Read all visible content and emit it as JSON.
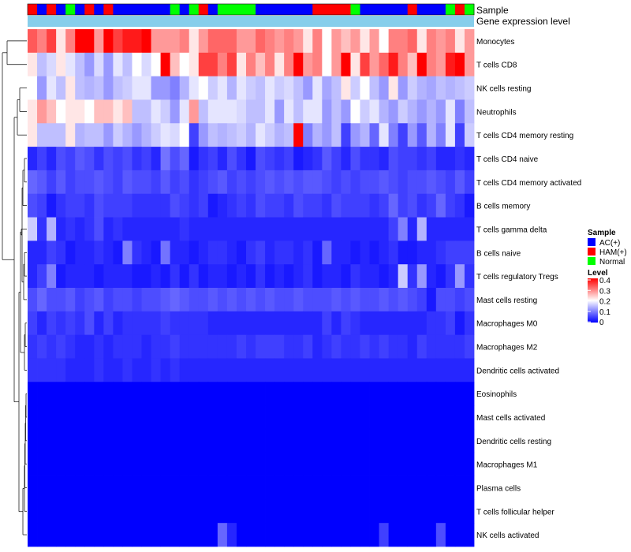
{
  "chart_data": {
    "type": "heatmap",
    "title": "",
    "annotation_rows": [
      "Sample",
      "Gene expression level"
    ],
    "sample_groups": [
      "HAM(+)",
      "AC(+)",
      "HAM(+)",
      "AC(+)",
      "Normal",
      "AC(+)",
      "HAM(+)",
      "AC(+)",
      "HAM(+)",
      "AC(+)",
      "AC(+)",
      "AC(+)",
      "AC(+)",
      "AC(+)",
      "AC(+)",
      "Normal",
      "AC(+)",
      "Normal",
      "HAM(+)",
      "AC(+)",
      "Normal",
      "Normal",
      "Normal",
      "Normal",
      "AC(+)",
      "AC(+)",
      "AC(+)",
      "AC(+)",
      "AC(+)",
      "AC(+)",
      "HAM(+)",
      "HAM(+)",
      "HAM(+)",
      "HAM(+)",
      "Normal",
      "AC(+)",
      "AC(+)",
      "AC(+)",
      "AC(+)",
      "AC(+)",
      "HAM(+)",
      "AC(+)",
      "AC(+)",
      "AC(+)",
      "Normal",
      "HAM(+)",
      "Normal"
    ],
    "rows": [
      {
        "name": "Monocytes",
        "values": [
          0.33,
          0.3,
          0.35,
          0.22,
          0.3,
          0.4,
          0.4,
          0.28,
          0.4,
          0.35,
          0.38,
          0.38,
          0.4,
          0.28,
          0.28,
          0.28,
          0.3,
          0.22,
          0.28,
          0.32,
          0.32,
          0.32,
          0.28,
          0.28,
          0.32,
          0.3,
          0.28,
          0.3,
          0.28,
          0.22,
          0.3,
          0.2,
          0.28,
          0.25,
          0.28,
          0.22,
          0.28,
          0.2,
          0.3,
          0.3,
          0.32,
          0.22,
          0.3,
          0.28,
          0.3,
          0.22,
          0.28
        ]
      },
      {
        "name": "T cells CD8",
        "values": [
          0.22,
          0.15,
          0.17,
          0.22,
          0.18,
          0.15,
          0.12,
          0.17,
          0.12,
          0.18,
          0.15,
          0.2,
          0.17,
          0.2,
          0.4,
          0.25,
          0.2,
          0.22,
          0.35,
          0.35,
          0.3,
          0.35,
          0.22,
          0.3,
          0.25,
          0.3,
          0.22,
          0.3,
          0.4,
          0.28,
          0.3,
          0.2,
          0.28,
          0.42,
          0.22,
          0.35,
          0.28,
          0.32,
          0.38,
          0.3,
          0.25,
          0.4,
          0.3,
          0.28,
          0.38,
          0.4,
          0.28
        ]
      },
      {
        "name": "NK cells resting",
        "values": [
          0.2,
          0.12,
          0.18,
          0.15,
          0.22,
          0.15,
          0.14,
          0.15,
          0.12,
          0.15,
          0.16,
          0.18,
          0.18,
          0.12,
          0.12,
          0.1,
          0.14,
          0.18,
          0.2,
          0.16,
          0.18,
          0.14,
          0.18,
          0.16,
          0.15,
          0.18,
          0.16,
          0.17,
          0.15,
          0.12,
          0.18,
          0.13,
          0.15,
          0.22,
          0.16,
          0.2,
          0.15,
          0.12,
          0.22,
          0.12,
          0.16,
          0.14,
          0.13,
          0.15,
          0.14,
          0.15,
          0.16
        ]
      },
      {
        "name": "Neutrophils",
        "values": [
          0.22,
          0.28,
          0.25,
          0.2,
          0.22,
          0.22,
          0.2,
          0.25,
          0.25,
          0.22,
          0.25,
          0.15,
          0.15,
          0.18,
          0.16,
          0.12,
          0.18,
          0.28,
          0.15,
          0.18,
          0.18,
          0.18,
          0.17,
          0.15,
          0.15,
          0.18,
          0.12,
          0.18,
          0.15,
          0.18,
          0.18,
          0.12,
          0.15,
          0.12,
          0.2,
          0.16,
          0.18,
          0.14,
          0.12,
          0.16,
          0.14,
          0.12,
          0.14,
          0.12,
          0.18,
          0.1,
          0.15
        ]
      },
      {
        "name": "T cells CD4 memory resting",
        "values": [
          0.22,
          0.15,
          0.15,
          0.15,
          0.22,
          0.14,
          0.15,
          0.15,
          0.12,
          0.16,
          0.14,
          0.12,
          0.14,
          0.16,
          0.18,
          0.17,
          0.2,
          0.05,
          0.12,
          0.15,
          0.14,
          0.15,
          0.16,
          0.14,
          0.18,
          0.16,
          0.14,
          0.15,
          0.42,
          0.1,
          0.14,
          0.12,
          0.15,
          0.05,
          0.12,
          0.14,
          0.08,
          0.18,
          0.1,
          0.05,
          0.12,
          0.07,
          0.14,
          0.1,
          0.18,
          0.05,
          0.16
        ]
      },
      {
        "name": "T cells CD4 naive",
        "values": [
          0.03,
          0.05,
          0.03,
          0.06,
          0.05,
          0.07,
          0.06,
          0.04,
          0.06,
          0.05,
          0.06,
          0.04,
          0.05,
          0.03,
          0.09,
          0.06,
          0.08,
          0.02,
          0.04,
          0.05,
          0.03,
          0.06,
          0.04,
          0.02,
          0.06,
          0.05,
          0.04,
          0.05,
          0.02,
          0.03,
          0.04,
          0.07,
          0.05,
          0.03,
          0.06,
          0.04,
          0.04,
          0.03,
          0.06,
          0.05,
          0.05,
          0.04,
          0.05,
          0.03,
          0.03,
          0.04,
          0.03
        ]
      },
      {
        "name": "T cells CD4 memory activated",
        "values": [
          0.08,
          0.07,
          0.05,
          0.07,
          0.05,
          0.06,
          0.06,
          0.07,
          0.06,
          0.05,
          0.07,
          0.06,
          0.06,
          0.05,
          0.07,
          0.05,
          0.06,
          0.04,
          0.05,
          0.06,
          0.07,
          0.05,
          0.06,
          0.05,
          0.06,
          0.07,
          0.06,
          0.07,
          0.06,
          0.07,
          0.07,
          0.06,
          0.05,
          0.06,
          0.05,
          0.06,
          0.06,
          0.07,
          0.06,
          0.05,
          0.06,
          0.06,
          0.07,
          0.06,
          0.05,
          0.07,
          0.05
        ]
      },
      {
        "name": "B cells memory",
        "values": [
          0.06,
          0.05,
          0.02,
          0.04,
          0.05,
          0.05,
          0.04,
          0.06,
          0.05,
          0.05,
          0.05,
          0.04,
          0.04,
          0.04,
          0.04,
          0.06,
          0.05,
          0.04,
          0.05,
          0.02,
          0.03,
          0.04,
          0.05,
          0.04,
          0.06,
          0.05,
          0.05,
          0.04,
          0.06,
          0.05,
          0.05,
          0.04,
          0.06,
          0.05,
          0.05,
          0.05,
          0.04,
          0.05,
          0.08,
          0.05,
          0.06,
          0.04,
          0.05,
          0.08,
          0.05,
          0.04,
          0.02
        ]
      },
      {
        "name": "T cells gamma delta",
        "values": [
          0.16,
          0.04,
          0.14,
          0.03,
          0.04,
          0.03,
          0.04,
          0.06,
          0.03,
          0.04,
          0.03,
          0.03,
          0.03,
          0.03,
          0.03,
          0.03,
          0.04,
          0.03,
          0.03,
          0.03,
          0.03,
          0.03,
          0.03,
          0.03,
          0.03,
          0.03,
          0.03,
          0.03,
          0.03,
          0.03,
          0.03,
          0.03,
          0.03,
          0.03,
          0.03,
          0.03,
          0.03,
          0.03,
          0.05,
          0.1,
          0.03,
          0.14,
          0.03,
          0.03,
          0.03,
          0.03,
          0.03
        ]
      },
      {
        "name": "B cells naive",
        "values": [
          0.03,
          0.03,
          0.05,
          0.04,
          0.02,
          0.03,
          0.03,
          0.04,
          0.03,
          0.02,
          0.1,
          0.04,
          0.03,
          0.02,
          0.09,
          0.03,
          0.03,
          0.02,
          0.03,
          0.04,
          0.04,
          0.03,
          0.02,
          0.04,
          0.05,
          0.03,
          0.04,
          0.04,
          0.03,
          0.04,
          0.02,
          0.08,
          0.03,
          0.03,
          0.02,
          0.03,
          0.02,
          0.03,
          0.04,
          0.02,
          0.02,
          0.03,
          0.03,
          0.04,
          0.05,
          0.05,
          0.05
        ]
      },
      {
        "name": "T cells regulatory  Tregs",
        "values": [
          0.03,
          0.05,
          0.1,
          0.02,
          0.03,
          0.03,
          0.03,
          0.02,
          0.03,
          0.03,
          0.03,
          0.02,
          0.02,
          0.03,
          0.02,
          0.04,
          0.02,
          0.04,
          0.02,
          0.03,
          0.03,
          0.02,
          0.03,
          0.02,
          0.04,
          0.02,
          0.03,
          0.02,
          0.03,
          0.04,
          0.02,
          0.03,
          0.03,
          0.02,
          0.04,
          0.03,
          0.03,
          0.02,
          0.03,
          0.16,
          0.04,
          0.12,
          0.03,
          0.02,
          0.04,
          0.12,
          0.04
        ]
      },
      {
        "name": "Mast cells resting",
        "values": [
          0.06,
          0.08,
          0.06,
          0.06,
          0.07,
          0.05,
          0.06,
          0.07,
          0.05,
          0.06,
          0.06,
          0.05,
          0.06,
          0.06,
          0.07,
          0.08,
          0.07,
          0.06,
          0.06,
          0.07,
          0.06,
          0.07,
          0.06,
          0.07,
          0.06,
          0.07,
          0.06,
          0.06,
          0.07,
          0.06,
          0.06,
          0.06,
          0.07,
          0.06,
          0.07,
          0.06,
          0.06,
          0.07,
          0.06,
          0.07,
          0.06,
          0.05,
          0.02,
          0.06,
          0.06,
          0.05,
          0.06
        ]
      },
      {
        "name": "Macrophages M0",
        "values": [
          0.05,
          0.03,
          0.05,
          0.04,
          0.05,
          0.04,
          0.06,
          0.03,
          0.05,
          0.03,
          0.04,
          0.04,
          0.04,
          0.04,
          0.05,
          0.04,
          0.04,
          0.04,
          0.04,
          0.03,
          0.03,
          0.03,
          0.03,
          0.03,
          0.03,
          0.03,
          0.03,
          0.03,
          0.03,
          0.03,
          0.03,
          0.05,
          0.03,
          0.05,
          0.04,
          0.03,
          0.03,
          0.03,
          0.03,
          0.03,
          0.03,
          0.03,
          0.04,
          0.04,
          0.05,
          0.02,
          0.04
        ]
      },
      {
        "name": "Macrophages M2",
        "values": [
          0.04,
          0.05,
          0.04,
          0.05,
          0.04,
          0.03,
          0.03,
          0.04,
          0.03,
          0.04,
          0.04,
          0.04,
          0.03,
          0.04,
          0.04,
          0.05,
          0.04,
          0.04,
          0.04,
          0.04,
          0.04,
          0.04,
          0.05,
          0.04,
          0.05,
          0.05,
          0.05,
          0.04,
          0.04,
          0.05,
          0.03,
          0.04,
          0.05,
          0.04,
          0.04,
          0.05,
          0.04,
          0.05,
          0.04,
          0.04,
          0.03,
          0.05,
          0.04,
          0.04,
          0.04,
          0.04,
          0.05
        ]
      },
      {
        "name": "Dendritic cells activated",
        "values": [
          0.04,
          0.04,
          0.04,
          0.04,
          0.03,
          0.03,
          0.03,
          0.04,
          0.03,
          0.03,
          0.04,
          0.03,
          0.03,
          0.04,
          0.03,
          0.04,
          0.03,
          0.03,
          0.03,
          0.03,
          0.03,
          0.03,
          0.03,
          0.03,
          0.03,
          0.03,
          0.03,
          0.03,
          0.03,
          0.03,
          0.03,
          0.03,
          0.03,
          0.03,
          0.03,
          0.03,
          0.03,
          0.03,
          0.03,
          0.03,
          0.03,
          0.03,
          0.03,
          0.03,
          0.03,
          0.03,
          0.03
        ]
      },
      {
        "name": "Eosinophils",
        "values": [
          0,
          0,
          0,
          0,
          0,
          0,
          0,
          0,
          0,
          0,
          0,
          0,
          0,
          0,
          0,
          0,
          0,
          0,
          0,
          0,
          0,
          0,
          0,
          0,
          0,
          0,
          0,
          0,
          0,
          0,
          0,
          0,
          0,
          0,
          0,
          0,
          0,
          0,
          0,
          0,
          0,
          0,
          0,
          0,
          0,
          0,
          0
        ]
      },
      {
        "name": "Mast cells activated",
        "values": [
          0,
          0,
          0,
          0,
          0,
          0,
          0,
          0,
          0,
          0,
          0,
          0,
          0,
          0,
          0,
          0,
          0,
          0,
          0,
          0,
          0,
          0,
          0,
          0,
          0,
          0,
          0,
          0,
          0,
          0,
          0,
          0,
          0,
          0,
          0,
          0,
          0,
          0,
          0,
          0,
          0,
          0,
          0,
          0,
          0,
          0,
          0
        ]
      },
      {
        "name": "Dendritic cells resting",
        "values": [
          0,
          0,
          0,
          0,
          0,
          0,
          0,
          0,
          0,
          0,
          0,
          0,
          0,
          0,
          0,
          0,
          0,
          0,
          0,
          0,
          0,
          0,
          0,
          0,
          0,
          0,
          0,
          0,
          0,
          0,
          0,
          0,
          0,
          0,
          0,
          0,
          0,
          0,
          0,
          0,
          0,
          0,
          0,
          0,
          0,
          0,
          0
        ]
      },
      {
        "name": "Macrophages M1",
        "values": [
          0,
          0,
          0,
          0,
          0,
          0,
          0,
          0,
          0,
          0,
          0,
          0,
          0,
          0,
          0,
          0,
          0,
          0,
          0,
          0,
          0,
          0,
          0,
          0,
          0,
          0,
          0,
          0,
          0,
          0,
          0,
          0,
          0,
          0,
          0,
          0,
          0,
          0,
          0,
          0,
          0,
          0,
          0,
          0,
          0,
          0,
          0
        ]
      },
      {
        "name": "Plasma cells",
        "values": [
          0,
          0,
          0,
          0,
          0,
          0,
          0,
          0,
          0,
          0,
          0,
          0,
          0,
          0,
          0,
          0,
          0,
          0,
          0,
          0,
          0,
          0,
          0,
          0,
          0,
          0,
          0,
          0,
          0,
          0,
          0,
          0,
          0,
          0,
          0,
          0,
          0,
          0,
          0,
          0,
          0,
          0,
          0,
          0,
          0,
          0,
          0
        ]
      },
      {
        "name": "T cells follicular helper",
        "values": [
          0,
          0,
          0,
          0,
          0,
          0,
          0,
          0,
          0,
          0,
          0,
          0,
          0,
          0,
          0,
          0,
          0,
          0,
          0,
          0,
          0,
          0,
          0,
          0,
          0,
          0,
          0,
          0,
          0,
          0,
          0,
          0,
          0,
          0,
          0,
          0,
          0,
          0,
          0,
          0,
          0,
          0,
          0,
          0,
          0,
          0,
          0
        ]
      },
      {
        "name": "NK cells activated",
        "values": [
          0,
          0,
          0,
          0,
          0,
          0,
          0,
          0,
          0,
          0,
          0,
          0,
          0,
          0,
          0,
          0,
          0,
          0,
          0,
          0,
          0.08,
          0.03,
          0,
          0,
          0,
          0,
          0,
          0,
          0,
          0,
          0,
          0,
          0,
          0,
          0,
          0,
          0,
          0.05,
          0,
          0,
          0,
          0,
          0,
          0.06,
          0,
          0,
          0
        ]
      }
    ],
    "legend": {
      "sample": {
        "title": "Sample",
        "entries": [
          {
            "label": "AC(+)",
            "color": "#0000ff"
          },
          {
            "label": "HAM(+)",
            "color": "#ff0000"
          },
          {
            "label": "Normal",
            "color": "#00ff00"
          }
        ]
      },
      "level": {
        "title": "Level",
        "ticks": [
          "0.4",
          "0.3",
          "0.2",
          "0.1",
          "0"
        ],
        "range": [
          0,
          0.4
        ]
      }
    },
    "colors": {
      "low": "#0000ff",
      "mid": "#ffffff",
      "high": "#ff0000",
      "gene_expression_bar": "#87ceeb",
      "dendrogram": "#000000"
    }
  }
}
